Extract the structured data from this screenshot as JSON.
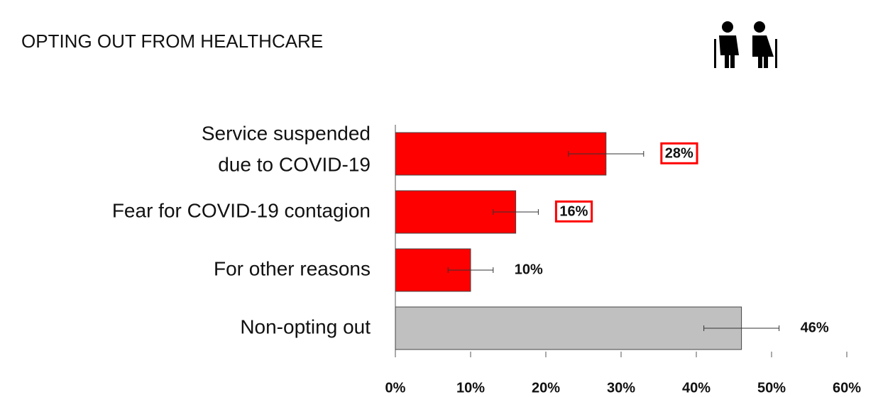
{
  "chart_data": {
    "type": "hbar",
    "title": "OPTING OUT FROM HEALTHCARE",
    "categories": [
      [
        "Service suspended",
        "due to COVID-19"
      ],
      [
        "Fear for COVID-19 contagion"
      ],
      [
        "For other reasons"
      ],
      [
        "Non-opting out"
      ]
    ],
    "values": [
      28,
      16,
      10,
      46
    ],
    "value_labels": [
      "28%",
      "16%",
      "10%",
      "46%"
    ],
    "errors": [
      5,
      3,
      3,
      5
    ],
    "colors": [
      "#ff0000",
      "#ff0000",
      "#ff0000",
      "#c0c0c0"
    ],
    "highlight": [
      true,
      true,
      false,
      false
    ],
    "xlim": [
      0,
      60
    ],
    "xticks": [
      {
        "value": 0,
        "label": "0%"
      },
      {
        "value": 10,
        "label": "10%"
      },
      {
        "value": 20,
        "label": "20%"
      },
      {
        "value": 30,
        "label": "30%"
      },
      {
        "value": 40,
        "label": "40%"
      },
      {
        "value": 50,
        "label": "50%"
      },
      {
        "value": 60,
        "label": "60%"
      }
    ]
  }
}
